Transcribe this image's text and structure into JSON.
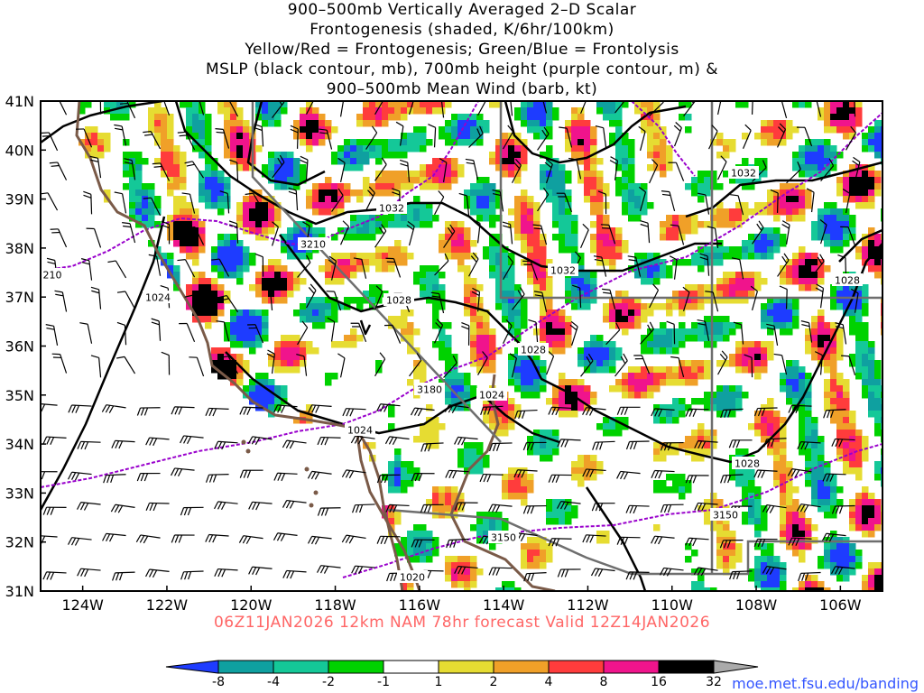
{
  "titles": {
    "line1": "900–500mb Vertically Averaged 2–D Scalar",
    "line2": "Frontogenesis (shaded, K/6hr/100km)",
    "line3": "Yellow/Red = Frontogenesis;  Green/Blue = Frontolysis",
    "line4": "MSLP (black contour, mb), 700mb height (purple contour, m) &",
    "line5": "900–500mb Mean Wind (barb, kt)"
  },
  "valid_line": "06Z11JAN2026 12km NAM 78hr forecast Valid 12Z14JAN2026",
  "url": "moe.met.fsu.edu/banding",
  "colors": {
    "valid_text": "#ff6666",
    "url_text": "#3355ff",
    "mslp": "#000000",
    "height": "#9900cc",
    "coast": "#7a5a48",
    "border": "#6e6e6e",
    "barb": "#000000"
  },
  "colorbar": {
    "labels": [
      "-8",
      "-4",
      "-2",
      "-1",
      "1",
      "2",
      "4",
      "8",
      "16",
      "32"
    ],
    "colors": [
      "#1e3cff",
      "#0fa0a0",
      "#14c898",
      "#00d200",
      "#ffffff",
      "#e6dc32",
      "#f0a028",
      "#ff3c3c",
      "#f0148c",
      "#000000",
      "#aaaaaa"
    ]
  },
  "chart_data": {
    "type": "map",
    "region": "Southwestern United States",
    "lon_range": [
      -125,
      -105
    ],
    "lat_range": [
      31,
      41
    ],
    "lon_ticks": [
      "124W",
      "122W",
      "120W",
      "118W",
      "116W",
      "114W",
      "112W",
      "110W",
      "108W",
      "106W"
    ],
    "lat_ticks": [
      "31N",
      "32N",
      "33N",
      "34N",
      "35N",
      "36N",
      "37N",
      "38N",
      "39N",
      "40N",
      "41N"
    ],
    "isobar_labels": [
      "1032",
      "1032",
      "1032",
      "1028",
      "1028",
      "1028",
      "1024",
      "1024",
      "1024",
      "1028",
      "1020"
    ],
    "height_labels": [
      "3210",
      "210",
      "3180",
      "3150",
      "3150"
    ]
  }
}
